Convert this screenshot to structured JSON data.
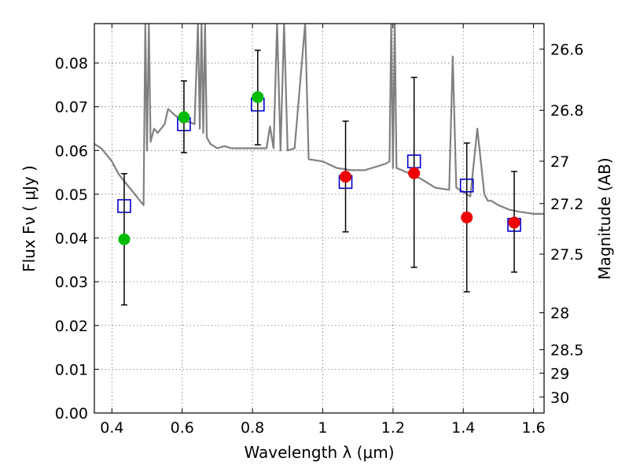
{
  "chart_data": {
    "type": "scatter",
    "xlabel": "Wavelength  λ (μm)",
    "ylabel": "Flux  Fν  ( μJy )",
    "y2label": "Magnitude (AB)",
    "xlim": [
      0.35,
      1.63
    ],
    "ylim": [
      0.0,
      0.089
    ],
    "grid": true,
    "x_ticks": [
      0.4,
      0.6,
      0.8,
      1.0,
      1.2,
      1.4,
      1.6
    ],
    "x_tick_labels": [
      "0.4",
      "0.6",
      "0.8",
      "1",
      "1.2",
      "1.4",
      "1.6"
    ],
    "y_ticks": [
      0.0,
      0.01,
      0.02,
      0.03,
      0.04,
      0.05,
      0.06,
      0.07,
      0.08
    ],
    "y_tick_labels": [
      "0.00",
      "0.01",
      "0.02",
      "0.03",
      "0.04",
      "0.05",
      "0.06",
      "0.07",
      "0.08"
    ],
    "y2_ticks": [
      {
        "label": "26.6",
        "mag": 26.6
      },
      {
        "label": "26.8",
        "mag": 26.8
      },
      {
        "label": "27",
        "mag": 27.0
      },
      {
        "label": "27.2",
        "mag": 27.2
      },
      {
        "label": "27.5",
        "mag": 27.5
      },
      {
        "label": "28",
        "mag": 28.0
      },
      {
        "label": "28.5",
        "mag": 28.5
      },
      {
        "label": "29",
        "mag": 29.0
      },
      {
        "label": "30",
        "mag": 30.0
      }
    ],
    "colors": {
      "model": "#808080",
      "model_photometry": "#0000cc",
      "detections_green": "#00bb00",
      "detections_red": "#ee0000",
      "errorbar": "#000000"
    },
    "series": [
      {
        "name": "SED model spectrum",
        "kind": "line",
        "x": [
          0.35,
          0.37,
          0.38,
          0.4,
          0.42,
          0.44,
          0.46,
          0.48,
          0.49,
          0.495,
          0.5,
          0.505,
          0.51,
          0.52,
          0.53,
          0.55,
          0.56,
          0.58,
          0.6,
          0.62,
          0.635,
          0.645,
          0.65,
          0.655,
          0.66,
          0.665,
          0.67,
          0.68,
          0.7,
          0.72,
          0.74,
          0.76,
          0.78,
          0.8,
          0.82,
          0.84,
          0.85,
          0.86,
          0.87,
          0.88,
          0.89,
          0.9,
          0.92,
          0.95,
          0.96,
          1.0,
          1.04,
          1.08,
          1.1,
          1.12,
          1.14,
          1.16,
          1.18,
          1.19,
          1.195,
          1.2,
          1.205,
          1.21,
          1.24,
          1.28,
          1.32,
          1.36,
          1.37,
          1.38,
          1.4,
          1.42,
          1.44,
          1.46,
          1.47,
          1.48,
          1.5,
          1.53,
          1.56,
          1.6,
          1.63
        ],
        "y": [
          0.0615,
          0.0605,
          0.0595,
          0.0575,
          0.0545,
          0.0525,
          0.0505,
          0.0485,
          0.0475,
          0.089,
          0.06,
          0.089,
          0.062,
          0.065,
          0.064,
          0.066,
          0.0695,
          0.068,
          0.067,
          0.0665,
          0.066,
          0.089,
          0.065,
          0.089,
          0.064,
          0.089,
          0.063,
          0.0615,
          0.0605,
          0.061,
          0.0605,
          0.0605,
          0.0605,
          0.0605,
          0.0605,
          0.0605,
          0.0655,
          0.0605,
          0.089,
          0.06,
          0.089,
          0.06,
          0.0605,
          0.089,
          0.058,
          0.0575,
          0.056,
          0.0555,
          0.0555,
          0.0555,
          0.056,
          0.0565,
          0.057,
          0.0575,
          0.089,
          0.056,
          0.089,
          0.056,
          0.055,
          0.0535,
          0.0515,
          0.051,
          0.0815,
          0.0515,
          0.0505,
          0.0495,
          0.065,
          0.05,
          0.0485,
          0.0485,
          0.0475,
          0.0465,
          0.046,
          0.0455,
          0.0455
        ]
      },
      {
        "name": "Model photometry (open squares)",
        "kind": "marker",
        "x": [
          0.435,
          0.605,
          0.815,
          1.065,
          1.26,
          1.41,
          1.545
        ],
        "y": [
          0.0473,
          0.066,
          0.0705,
          0.0528,
          0.0575,
          0.052,
          0.043
        ]
      },
      {
        "name": "Observed fluxes (green)",
        "kind": "errorbar",
        "x": [
          0.435,
          0.605,
          0.815
        ],
        "y": [
          0.0397,
          0.0676,
          0.0722
        ],
        "yerr_low": [
          0.015,
          0.0081,
          0.0109
        ],
        "yerr_high": [
          0.015,
          0.0083,
          0.0107
        ]
      },
      {
        "name": "Observed fluxes (red)",
        "kind": "errorbar",
        "x": [
          1.065,
          1.26,
          1.41,
          1.545
        ],
        "y": [
          0.054,
          0.0548,
          0.0447,
          0.0435
        ],
        "yerr_low": [
          0.0126,
          0.0215,
          0.017,
          0.0113
        ],
        "yerr_high": [
          0.0127,
          0.0219,
          0.017,
          0.0117
        ]
      }
    ]
  }
}
